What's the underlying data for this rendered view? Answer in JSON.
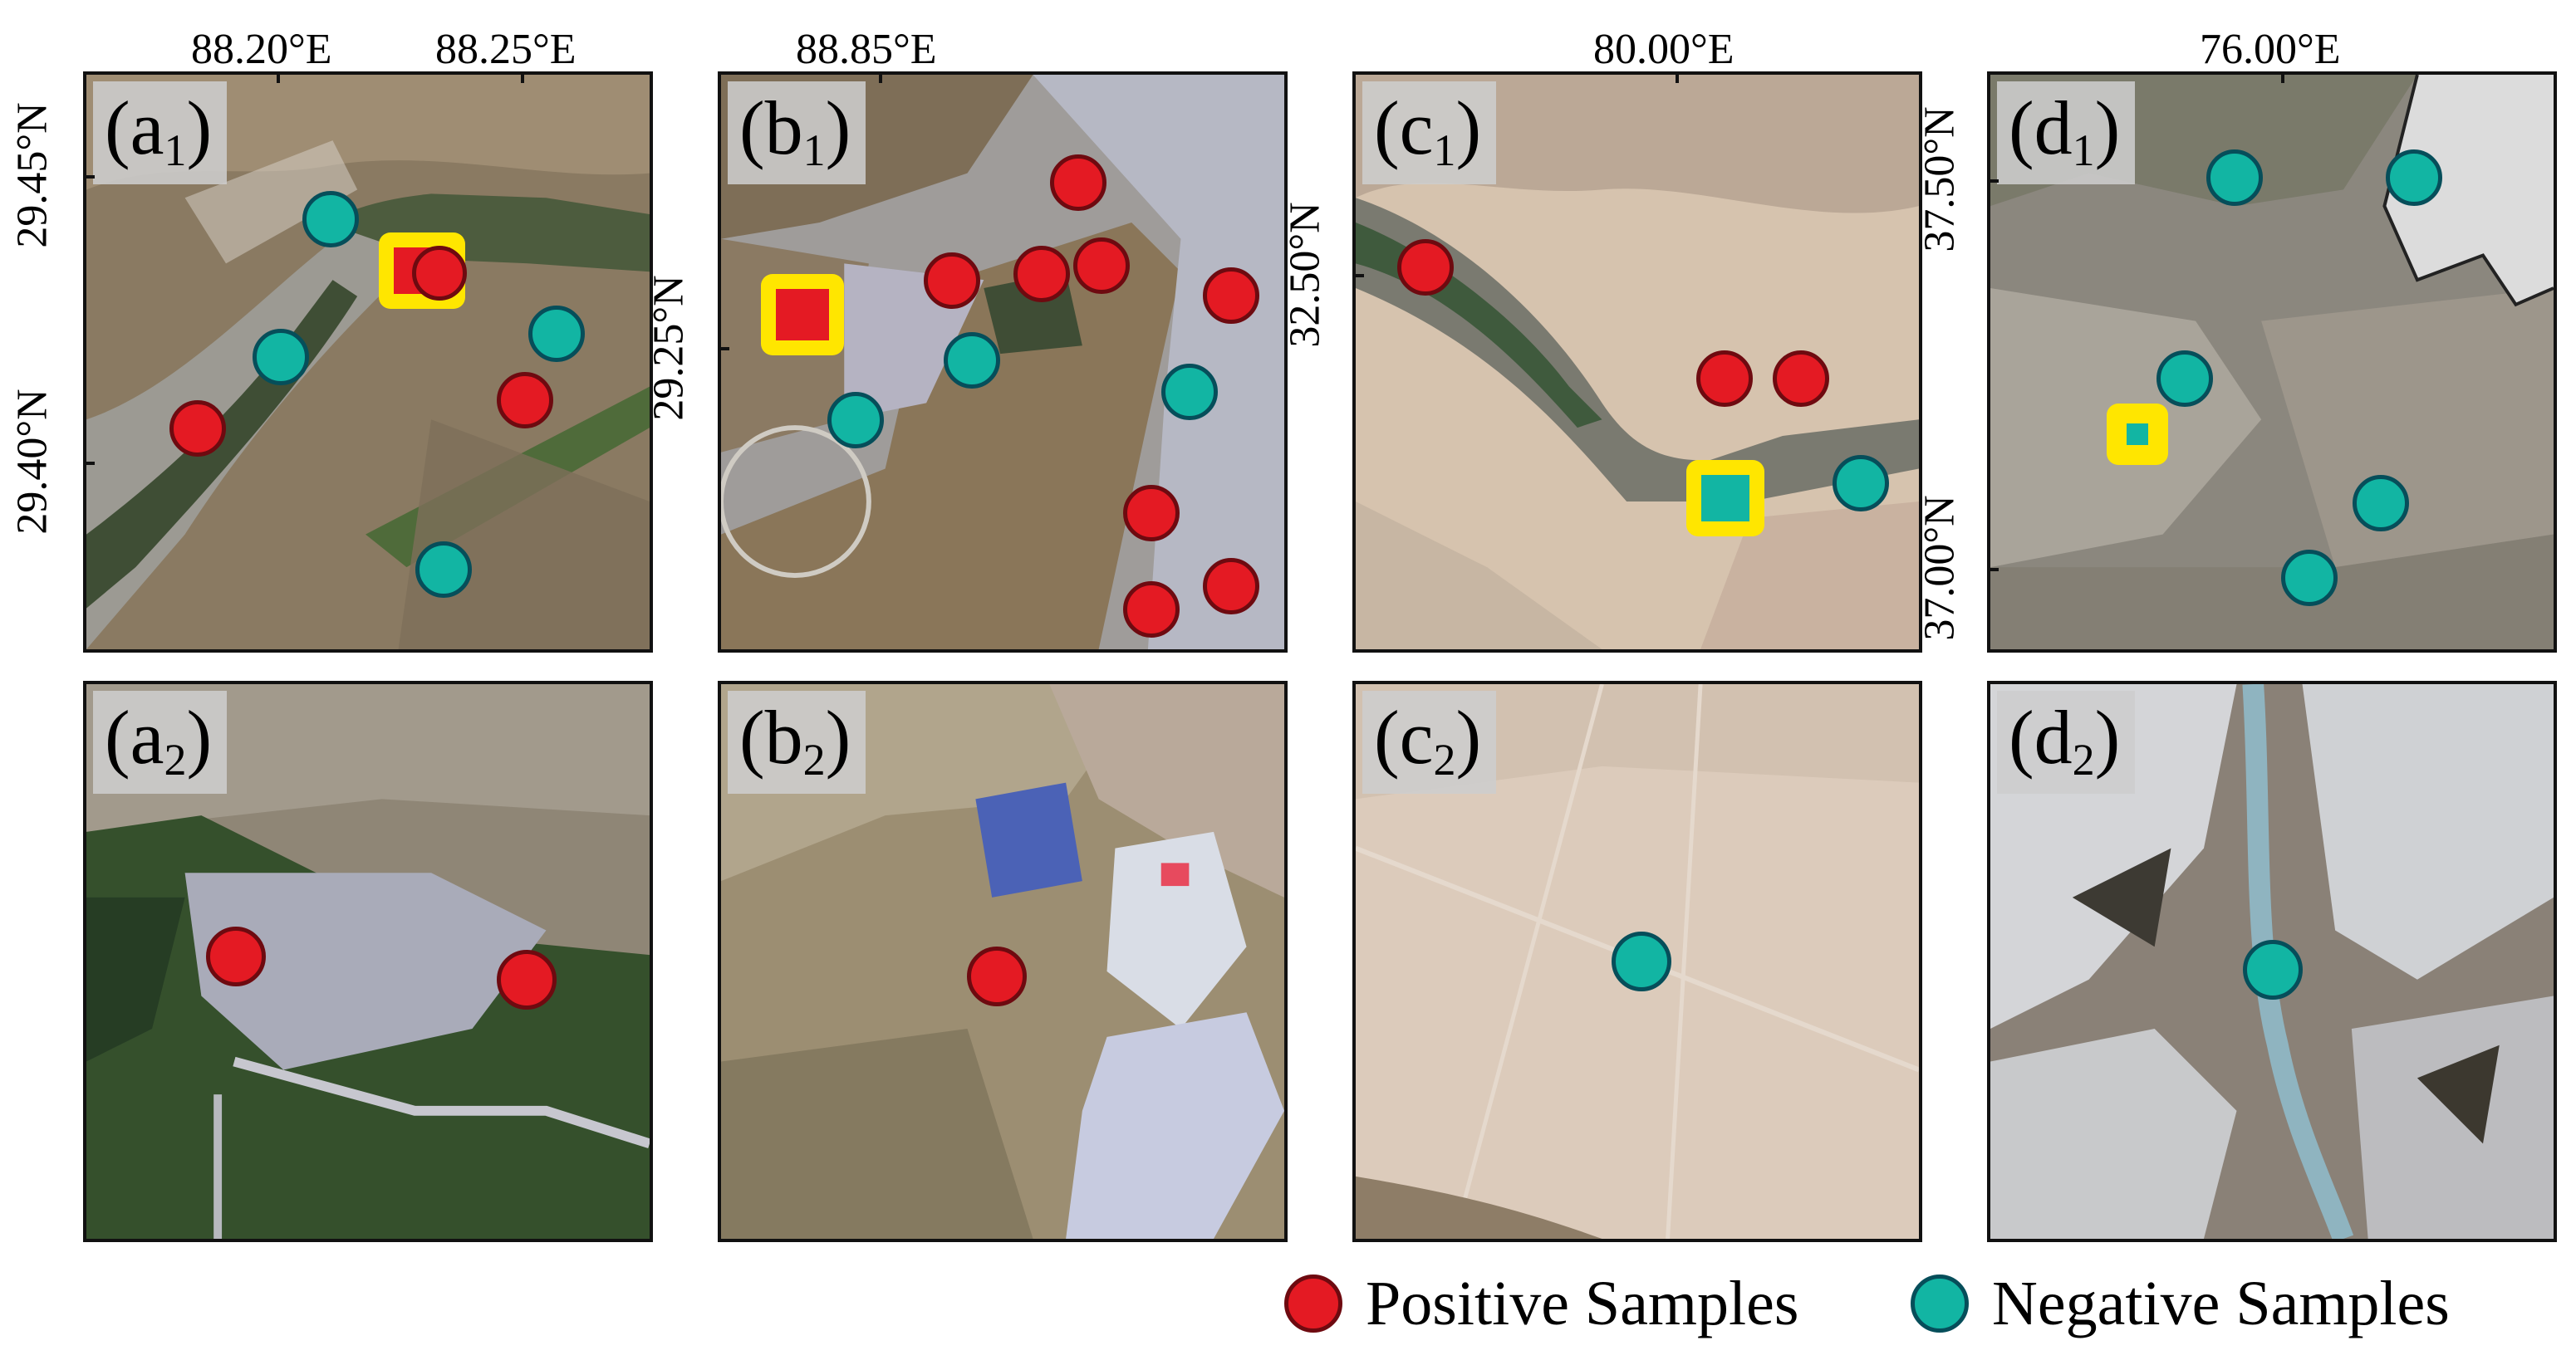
{
  "panels": {
    "a1": {
      "letter": "(a",
      "sub": "1",
      "suffix": ")"
    },
    "b1": {
      "letter": "(b",
      "sub": "1",
      "suffix": ")"
    },
    "c1": {
      "letter": "(c",
      "sub": "1",
      "suffix": ")"
    },
    "d1": {
      "letter": "(d",
      "sub": "1",
      "suffix": ")"
    },
    "a2": {
      "letter": "(a",
      "sub": "2",
      "suffix": ")"
    },
    "b2": {
      "letter": "(b",
      "sub": "2",
      "suffix": ")"
    },
    "c2": {
      "letter": "(c",
      "sub": "2",
      "suffix": ")"
    },
    "d2": {
      "letter": "(d",
      "sub": "2",
      "suffix": ")"
    }
  },
  "axes": {
    "a1": {
      "lon": [
        "88.20°E",
        "88.25°E"
      ],
      "lat": [
        "29.45°N",
        "29.40°N"
      ]
    },
    "b1": {
      "lon": [
        "88.85°E"
      ],
      "lat": [
        "29.25°N"
      ]
    },
    "c1": {
      "lon": [
        "80.00°E"
      ],
      "lat": [
        "32.50°N"
      ]
    },
    "d1": {
      "lon": [
        "76.00°E"
      ],
      "lat": [
        "37.50°N",
        "37.00°N"
      ]
    }
  },
  "legend": {
    "positive": "Positive Samples",
    "negative": "Negative Samples"
  },
  "colors": {
    "positive": "#e41a23",
    "negative": "#12b5a3",
    "highlight": "#ffe600"
  }
}
